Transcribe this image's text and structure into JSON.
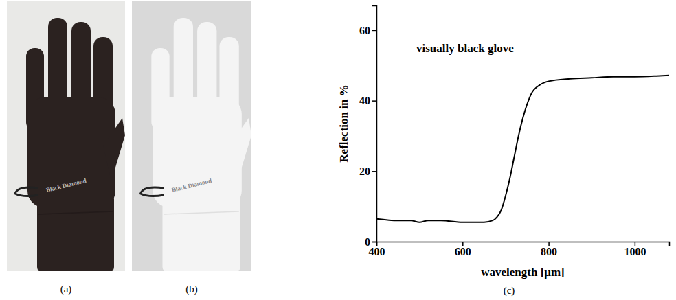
{
  "figure": {
    "labels": [
      "(a)",
      "(b)",
      "(c)"
    ],
    "photos": [
      {
        "brand": "Black Diamond",
        "color": "#2b2220"
      },
      {
        "brand": "Black Diamond",
        "color": "#f4f4f4"
      }
    ]
  },
  "chart_data": {
    "type": "line",
    "annotation": "visually black glove",
    "x_label": "wavelength [μm]",
    "y_label": "Reflection in %",
    "x": [
      400,
      450,
      480,
      500,
      520,
      550,
      600,
      650,
      670,
      680,
      690,
      700,
      710,
      720,
      730,
      740,
      750,
      760,
      780,
      800,
      850,
      900,
      950,
      1000,
      1050,
      1080
    ],
    "values": [
      6.5,
      6,
      6,
      5.5,
      6,
      6,
      5.5,
      5.5,
      6,
      7,
      9,
      13,
      18,
      24,
      30,
      35,
      39,
      42,
      44.5,
      45.5,
      46.2,
      46.5,
      46.8,
      46.8,
      47,
      47.2
    ],
    "color": "#000000",
    "xlim": [
      400,
      1080
    ],
    "xticks": [
      400,
      600,
      800,
      1000
    ],
    "ylim": [
      0,
      67
    ],
    "yticks": [
      0,
      20,
      40,
      60
    ],
    "grid": false
  }
}
